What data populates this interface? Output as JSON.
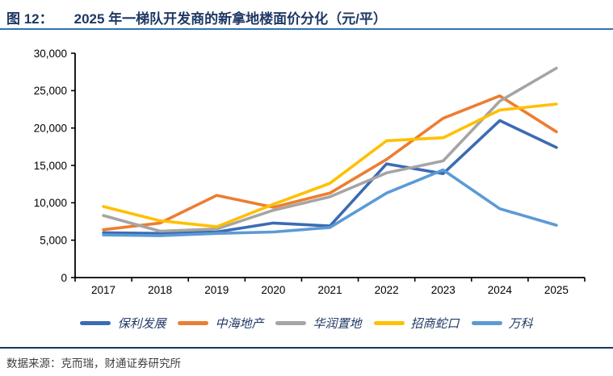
{
  "header": {
    "figure_label": "图 12：",
    "title": "2025 年一梯队开发商的新拿地楼面价分化（元/平）"
  },
  "footer": {
    "source": "数据来源：克而瑞，财通证券研究所"
  },
  "colors": {
    "title_text": "#1F3864",
    "header_rule": "#2E74B5",
    "footer_rule": "#17365D",
    "footer_text": "#3F3F3F",
    "axis": "#000000",
    "tick_label": "#000000"
  },
  "chart_data": {
    "type": "line",
    "title": "2025 年一梯队开发商的新拿地楼面价分化（元/平）",
    "categories": [
      "2017",
      "2018",
      "2019",
      "2020",
      "2021",
      "2022",
      "2023",
      "2024",
      "2025"
    ],
    "series": [
      {
        "name": "保利发展",
        "color": "#3C6BB3",
        "values": [
          6000,
          5900,
          6100,
          7300,
          6900,
          15200,
          13900,
          21000,
          17400
        ]
      },
      {
        "name": "中海地产",
        "color": "#ED7D31",
        "values": [
          6400,
          7300,
          11000,
          9400,
          11300,
          15800,
          21300,
          24300,
          19500
        ]
      },
      {
        "name": "华润置地",
        "color": "#A5A5A5",
        "values": [
          8300,
          6200,
          6500,
          9000,
          10800,
          14000,
          15600,
          23600,
          28000
        ]
      },
      {
        "name": "招商蛇口",
        "color": "#FFC000",
        "values": [
          9500,
          7600,
          6800,
          9800,
          12600,
          18300,
          18700,
          22400,
          23200
        ]
      },
      {
        "name": "万科",
        "color": "#5B9BD5",
        "values": [
          5700,
          5600,
          5900,
          6100,
          6700,
          11300,
          14400,
          9200,
          7000
        ]
      }
    ],
    "xlabel": "",
    "ylabel": "",
    "ylim": [
      0,
      30000
    ],
    "ytick_step": 5000,
    "grid": false,
    "legend_position": "bottom"
  }
}
